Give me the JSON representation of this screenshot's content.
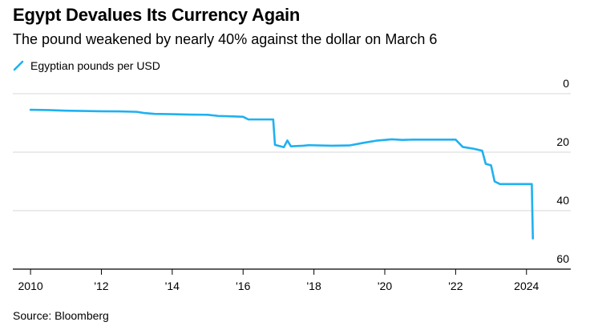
{
  "chart_data": {
    "type": "line",
    "title": "Egypt Devalues Its Currency Again",
    "subtitle": "The pound weakened by nearly 40% against the dollar on March 6",
    "source": "Source: Bloomberg",
    "series": [
      {
        "name": "Egyptian pounds per USD",
        "color": "#1fb1f0",
        "points": [
          [
            2010.0,
            5.5
          ],
          [
            2010.5,
            5.6
          ],
          [
            2011.0,
            5.8
          ],
          [
            2011.5,
            5.9
          ],
          [
            2012.0,
            6.0
          ],
          [
            2012.5,
            6.05
          ],
          [
            2013.0,
            6.2
          ],
          [
            2013.2,
            6.6
          ],
          [
            2013.5,
            6.9
          ],
          [
            2014.0,
            7.0
          ],
          [
            2014.5,
            7.15
          ],
          [
            2015.0,
            7.2
          ],
          [
            2015.3,
            7.6
          ],
          [
            2015.8,
            7.8
          ],
          [
            2016.0,
            7.9
          ],
          [
            2016.15,
            8.8
          ],
          [
            2016.85,
            8.8
          ],
          [
            2016.9,
            17.5
          ],
          [
            2017.15,
            18.3
          ],
          [
            2017.25,
            16.0
          ],
          [
            2017.35,
            18.0
          ],
          [
            2017.7,
            17.8
          ],
          [
            2017.85,
            17.6
          ],
          [
            2018.5,
            17.8
          ],
          [
            2019.0,
            17.7
          ],
          [
            2019.4,
            16.8
          ],
          [
            2019.8,
            16.0
          ],
          [
            2020.2,
            15.6
          ],
          [
            2020.5,
            15.8
          ],
          [
            2020.8,
            15.7
          ],
          [
            2021.5,
            15.7
          ],
          [
            2022.0,
            15.7
          ],
          [
            2022.2,
            18.2
          ],
          [
            2022.5,
            18.8
          ],
          [
            2022.75,
            19.5
          ],
          [
            2022.85,
            24.0
          ],
          [
            2023.0,
            24.5
          ],
          [
            2023.1,
            30.0
          ],
          [
            2023.25,
            30.9
          ],
          [
            2023.6,
            30.9
          ],
          [
            2024.15,
            30.9
          ],
          [
            2024.18,
            49.5
          ]
        ]
      }
    ],
    "xlabel": "",
    "ylabel": "",
    "x_ticks": [
      {
        "value": 2010,
        "label": "2010"
      },
      {
        "value": 2012,
        "label": "'12"
      },
      {
        "value": 2014,
        "label": "'14"
      },
      {
        "value": 2016,
        "label": "'16"
      },
      {
        "value": 2018,
        "label": "'18"
      },
      {
        "value": 2020,
        "label": "'20"
      },
      {
        "value": 2022,
        "label": "'22"
      },
      {
        "value": 2024,
        "label": "2024"
      }
    ],
    "y_ticks": [
      {
        "value": 0,
        "label": "0"
      },
      {
        "value": 20,
        "label": "20"
      },
      {
        "value": 40,
        "label": "40"
      },
      {
        "value": 60,
        "label": "60"
      }
    ],
    "xlim": [
      2009.5,
      2025.25
    ],
    "ylim": [
      0,
      60
    ],
    "y_inverted": true,
    "y_axis_side": "right",
    "grid": true,
    "legend_position": "top-left"
  }
}
